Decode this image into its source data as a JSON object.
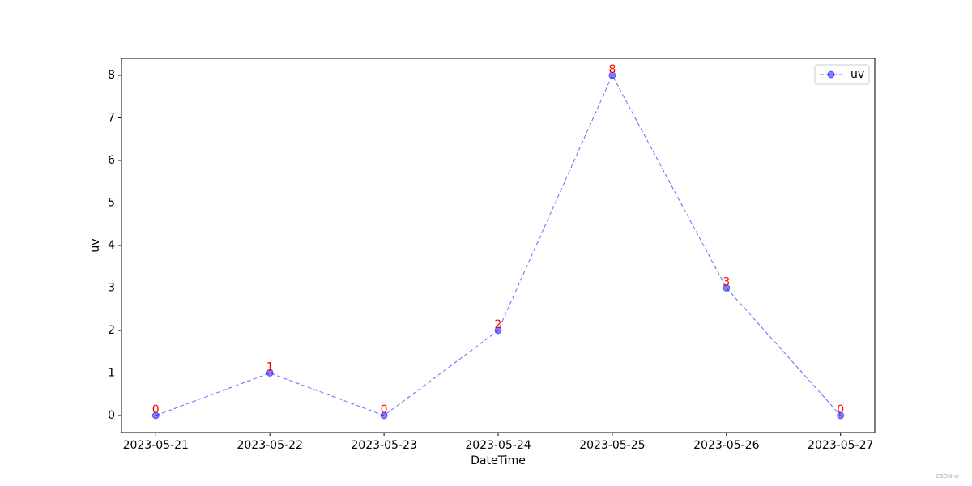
{
  "chart_data": {
    "type": "line",
    "xlabel": "DateTime",
    "ylabel": "uv",
    "categories": [
      "2023-05-21",
      "2023-05-22",
      "2023-05-23",
      "2023-05-24",
      "2023-05-25",
      "2023-05-26",
      "2023-05-27"
    ],
    "series": [
      {
        "name": "uv",
        "color": "#0000ff",
        "values": [
          0,
          1,
          0,
          2,
          8,
          3,
          0
        ]
      }
    ],
    "label_color": "#ff0000",
    "ylim": [
      -0.4,
      8.4
    ],
    "yticks": [
      0,
      1,
      2,
      3,
      4,
      5,
      6,
      7,
      8
    ],
    "legend": "upper right",
    "line_style": "dashed"
  },
  "watermark": "CSDN-ai"
}
